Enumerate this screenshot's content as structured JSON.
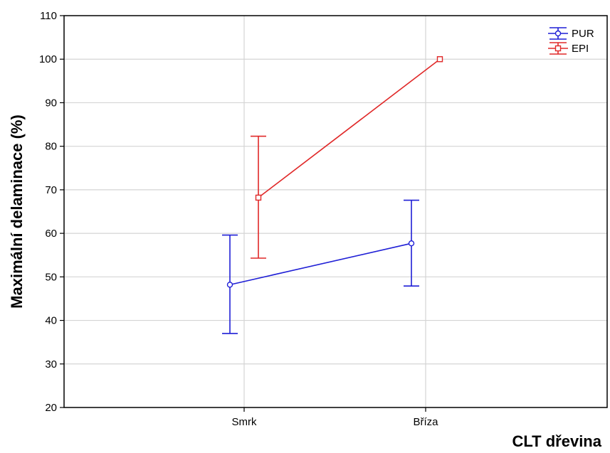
{
  "chart_data": {
    "type": "line",
    "title": "",
    "xlabel": "CLT dřevina",
    "ylabel": "Maximální delaminace  (%)",
    "categories": [
      "Smrk",
      "Bříza"
    ],
    "ylim": [
      20,
      110
    ],
    "yticks": [
      20,
      30,
      40,
      50,
      60,
      70,
      80,
      90,
      100,
      110
    ],
    "grid": true,
    "legend_position": "top-right",
    "series": [
      {
        "name": "PUR",
        "color": "#1f1fd6",
        "marker": "circle",
        "values": [
          48.2,
          57.7
        ],
        "err_low": [
          37.0,
          47.9
        ],
        "err_high": [
          59.6,
          67.6
        ]
      },
      {
        "name": "EPI",
        "color": "#e02828",
        "marker": "square",
        "values": [
          68.2,
          100.0
        ],
        "err_low": [
          54.3,
          100.0
        ],
        "err_high": [
          82.3,
          100.0
        ]
      }
    ]
  }
}
